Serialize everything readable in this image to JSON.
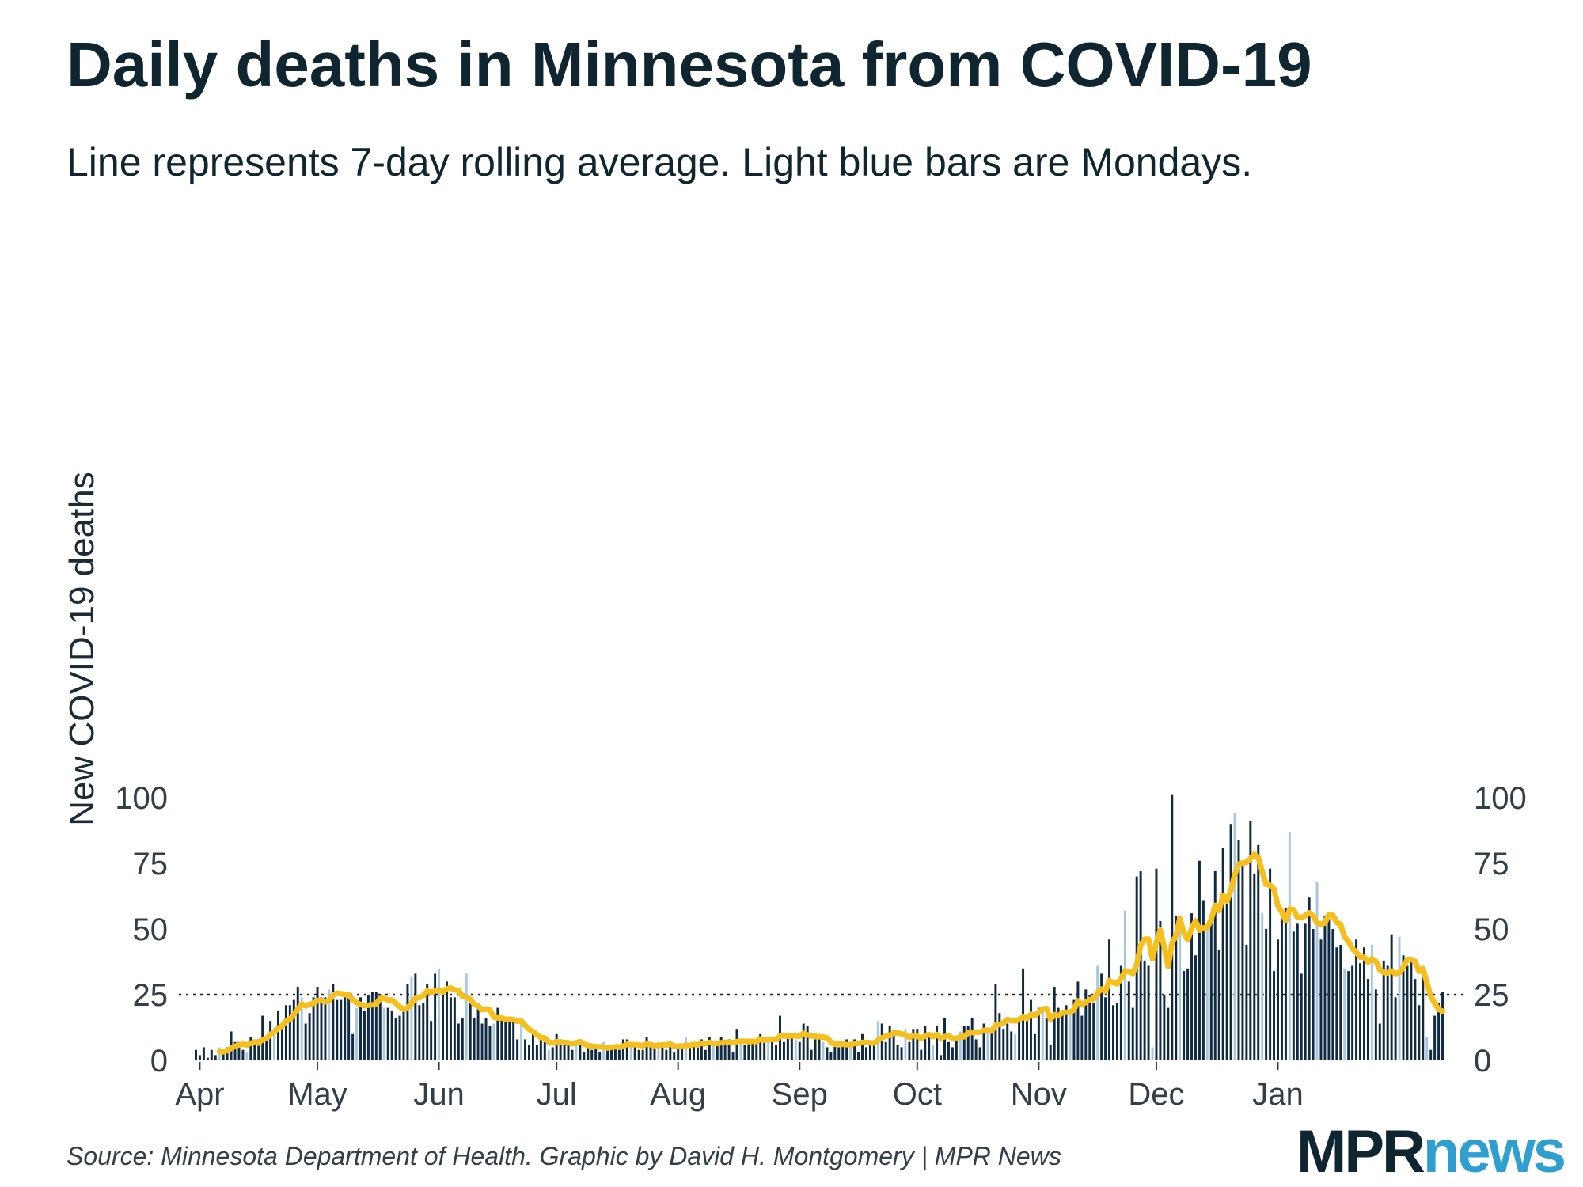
{
  "title": "Daily deaths in Minnesota from COVID-19",
  "subtitle": "Line represents 7-day rolling average. Light blue bars are Mondays.",
  "source": "Source: Minnesota Department of Health. Graphic by David H. Montgomery | MPR News",
  "logo": {
    "part1": "MPR",
    "part2": "news"
  },
  "colors": {
    "bar": "#0f2a42",
    "monday": "#a9c8de",
    "line": "#f5c01e",
    "text": "#0f2530",
    "tick": "#333f48",
    "logo_blue": "#2f9fd0"
  },
  "chart_data": {
    "type": "bar",
    "ylabel": "New COVID-19 deaths",
    "ylim": [
      0,
      100
    ],
    "yticks": [
      0,
      25,
      50,
      75,
      100
    ],
    "reference_line": 25,
    "x_start": "2020-03-31",
    "month_labels": [
      {
        "label": "Apr",
        "day": 1
      },
      {
        "label": "May",
        "day": 31
      },
      {
        "label": "Jun",
        "day": 62
      },
      {
        "label": "Jul",
        "day": 92
      },
      {
        "label": "Aug",
        "day": 123
      },
      {
        "label": "Sep",
        "day": 154
      },
      {
        "label": "Oct",
        "day": 184
      },
      {
        "label": "Nov",
        "day": 215
      },
      {
        "label": "Dec",
        "day": 245
      },
      {
        "label": "Jan",
        "day": 276
      }
    ],
    "first_monday_index": 6,
    "daily_deaths": [
      4,
      2,
      5,
      1,
      4,
      2,
      5,
      4,
      5,
      11,
      7,
      7,
      4,
      3,
      9,
      8,
      8,
      17,
      9,
      15,
      10,
      19,
      14,
      21,
      21,
      23,
      28,
      24,
      14,
      18,
      24,
      28,
      24,
      24,
      27,
      29,
      23,
      23,
      25,
      24,
      10,
      20,
      24,
      19,
      25,
      26,
      26,
      25,
      20,
      20,
      19,
      16,
      17,
      19,
      29,
      32,
      33,
      21,
      22,
      29,
      15,
      33,
      35,
      27,
      30,
      24,
      24,
      14,
      16,
      33,
      22,
      16,
      20,
      14,
      16,
      13,
      14,
      20,
      16,
      16,
      15,
      15,
      8,
      15,
      8,
      6,
      10,
      6,
      8,
      7,
      4,
      5,
      10,
      8,
      6,
      7,
      4,
      7,
      8,
      3,
      5,
      4,
      6,
      3,
      7,
      5,
      5,
      6,
      4,
      8,
      8,
      6,
      5,
      4,
      4,
      9,
      6,
      5,
      7,
      6,
      4,
      7,
      3,
      6,
      5,
      9,
      6,
      7,
      5,
      8,
      4,
      9,
      6,
      6,
      9,
      6,
      8,
      3,
      12,
      7,
      6,
      8,
      7,
      7,
      10,
      9,
      8,
      8,
      6,
      17,
      7,
      9,
      10,
      8,
      7,
      14,
      13,
      4,
      8,
      9,
      7,
      5,
      3,
      7,
      5,
      7,
      8,
      7,
      8,
      3,
      10,
      5,
      6,
      7,
      15,
      14,
      7,
      13,
      11,
      6,
      5,
      12,
      7,
      12,
      12,
      4,
      13,
      9,
      6,
      13,
      2,
      16,
      7,
      5,
      9,
      11,
      13,
      13,
      16,
      8,
      5,
      14,
      11,
      11,
      29,
      18,
      12,
      14,
      11,
      10,
      15,
      35,
      15,
      23,
      10,
      20,
      19,
      16,
      6,
      28,
      20,
      18,
      21,
      19,
      23,
      30,
      17,
      27,
      25,
      22,
      36,
      33,
      24,
      46,
      21,
      22,
      36,
      57,
      30,
      20,
      70,
      72,
      38,
      36,
      5,
      73,
      53,
      25,
      20,
      101,
      55,
      51,
      34,
      35,
      56,
      40,
      76,
      61,
      52,
      56,
      72,
      42,
      81,
      60,
      90,
      94,
      84,
      75,
      44,
      91,
      71,
      82,
      56,
      50,
      73,
      34,
      46,
      55,
      58,
      87,
      49,
      52,
      33,
      52,
      62,
      50,
      68,
      46,
      55,
      56,
      50,
      43,
      44,
      35,
      34,
      36,
      46,
      37,
      43,
      31,
      44,
      27,
      14,
      38,
      36,
      48,
      24,
      47,
      40,
      36,
      38,
      31,
      21,
      32,
      9,
      4,
      17,
      22,
      26
    ]
  }
}
